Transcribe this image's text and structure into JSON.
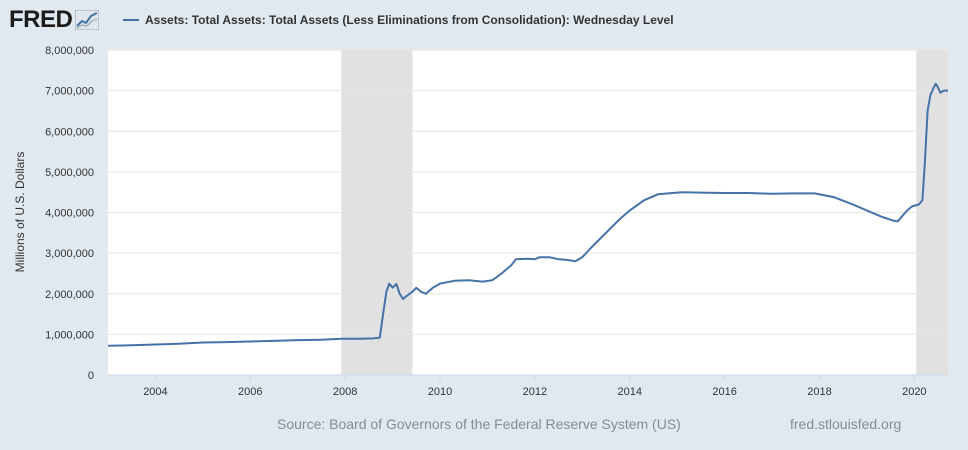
{
  "header": {
    "logo_text": "FRED",
    "legend_label": "Assets: Total Assets: Total Assets (Less Eliminations from Consolidation): Wednesday Level"
  },
  "colors": {
    "series": "#4572a7",
    "recession": "#e1e1e1",
    "plot_bg": "#ffffff",
    "page_bg": "#e1e9f0",
    "grid": "#e6e6e6"
  },
  "footer": {
    "source": "Source: Board of Governors of the Federal Reserve System (US)",
    "url": "fred.stlouisfed.org"
  },
  "chart_data": {
    "type": "line",
    "title": "Assets: Total Assets: Total Assets (Less Eliminations from Consolidation): Wednesday Level",
    "ylabel": "Millions of U.S. Dollars",
    "xlabel": "",
    "xlim": [
      2003.0,
      2020.71
    ],
    "ylim": [
      0,
      8000000
    ],
    "y_ticks": [
      {
        "value": 0,
        "label": "0"
      },
      {
        "value": 1000000,
        "label": "1,000,000"
      },
      {
        "value": 2000000,
        "label": "2,000,000"
      },
      {
        "value": 3000000,
        "label": "3,000,000"
      },
      {
        "value": 4000000,
        "label": "4,000,000"
      },
      {
        "value": 5000000,
        "label": "5,000,000"
      },
      {
        "value": 6000000,
        "label": "6,000,000"
      },
      {
        "value": 7000000,
        "label": "7,000,000"
      },
      {
        "value": 8000000,
        "label": "8,000,000"
      }
    ],
    "x_ticks": [
      {
        "value": 2004,
        "label": "2004"
      },
      {
        "value": 2006,
        "label": "2006"
      },
      {
        "value": 2008,
        "label": "2008"
      },
      {
        "value": 2010,
        "label": "2010"
      },
      {
        "value": 2012,
        "label": "2012"
      },
      {
        "value": 2014,
        "label": "2014"
      },
      {
        "value": 2016,
        "label": "2016"
      },
      {
        "value": 2018,
        "label": "2018"
      },
      {
        "value": 2020,
        "label": "2020"
      }
    ],
    "recessions": [
      {
        "start": 2007.92,
        "end": 2009.42
      },
      {
        "start": 2020.04,
        "end": 2020.71
      }
    ],
    "series": [
      {
        "name": "Assets: Total Assets: Total Assets (Less Eliminations from Consolidation): Wednesday Level",
        "points": [
          [
            2003.0,
            720000
          ],
          [
            2003.5,
            730000
          ],
          [
            2004.0,
            750000
          ],
          [
            2004.5,
            770000
          ],
          [
            2005.0,
            800000
          ],
          [
            2005.5,
            810000
          ],
          [
            2006.0,
            825000
          ],
          [
            2006.5,
            840000
          ],
          [
            2007.0,
            860000
          ],
          [
            2007.5,
            870000
          ],
          [
            2007.92,
            890000
          ],
          [
            2008.3,
            890000
          ],
          [
            2008.6,
            900000
          ],
          [
            2008.73,
            920000
          ],
          [
            2008.8,
            1500000
          ],
          [
            2008.87,
            2050000
          ],
          [
            2008.93,
            2250000
          ],
          [
            2009.0,
            2150000
          ],
          [
            2009.08,
            2240000
          ],
          [
            2009.15,
            2000000
          ],
          [
            2009.22,
            1870000
          ],
          [
            2009.3,
            1950000
          ],
          [
            2009.42,
            2050000
          ],
          [
            2009.5,
            2150000
          ],
          [
            2009.6,
            2050000
          ],
          [
            2009.7,
            2000000
          ],
          [
            2009.85,
            2150000
          ],
          [
            2010.0,
            2250000
          ],
          [
            2010.3,
            2320000
          ],
          [
            2010.6,
            2330000
          ],
          [
            2010.9,
            2300000
          ],
          [
            2011.1,
            2330000
          ],
          [
            2011.3,
            2500000
          ],
          [
            2011.5,
            2700000
          ],
          [
            2011.6,
            2850000
          ],
          [
            2011.85,
            2860000
          ],
          [
            2012.0,
            2850000
          ],
          [
            2012.1,
            2900000
          ],
          [
            2012.3,
            2900000
          ],
          [
            2012.5,
            2850000
          ],
          [
            2012.7,
            2830000
          ],
          [
            2012.85,
            2800000
          ],
          [
            2013.0,
            2900000
          ],
          [
            2013.2,
            3150000
          ],
          [
            2013.5,
            3500000
          ],
          [
            2013.8,
            3850000
          ],
          [
            2014.0,
            4050000
          ],
          [
            2014.3,
            4300000
          ],
          [
            2014.6,
            4450000
          ],
          [
            2014.9,
            4480000
          ],
          [
            2015.1,
            4500000
          ],
          [
            2015.5,
            4490000
          ],
          [
            2016.0,
            4480000
          ],
          [
            2016.5,
            4480000
          ],
          [
            2017.0,
            4460000
          ],
          [
            2017.5,
            4470000
          ],
          [
            2017.9,
            4470000
          ],
          [
            2018.3,
            4380000
          ],
          [
            2018.7,
            4200000
          ],
          [
            2019.0,
            4050000
          ],
          [
            2019.3,
            3900000
          ],
          [
            2019.55,
            3800000
          ],
          [
            2019.65,
            3780000
          ],
          [
            2019.75,
            3920000
          ],
          [
            2019.85,
            4050000
          ],
          [
            2019.95,
            4150000
          ],
          [
            2020.1,
            4200000
          ],
          [
            2020.17,
            4300000
          ],
          [
            2020.22,
            5200000
          ],
          [
            2020.28,
            6500000
          ],
          [
            2020.34,
            6900000
          ],
          [
            2020.4,
            7050000
          ],
          [
            2020.45,
            7170000
          ],
          [
            2020.5,
            7080000
          ],
          [
            2020.55,
            6950000
          ],
          [
            2020.62,
            7000000
          ],
          [
            2020.71,
            7000000
          ]
        ]
      }
    ]
  }
}
